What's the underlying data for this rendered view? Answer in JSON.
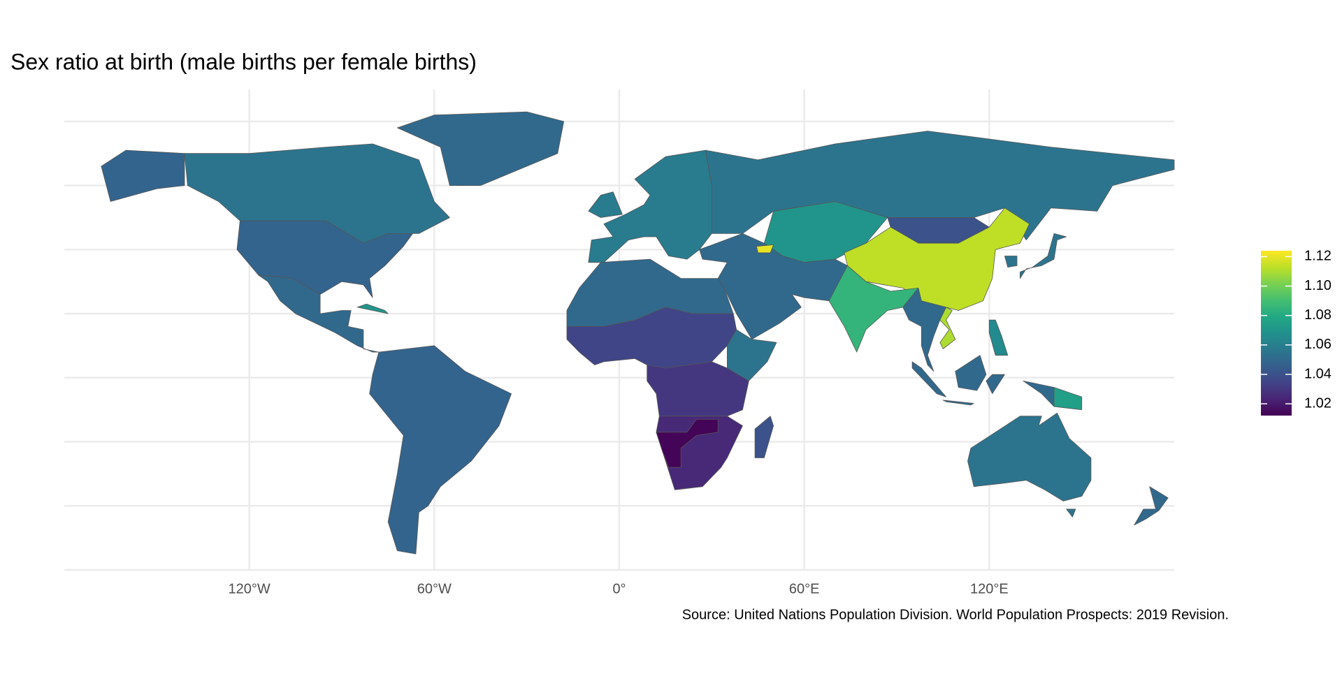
{
  "chart_data": {
    "type": "choropleth",
    "title": "Sex ratio at birth (male births per female births)",
    "caption": "Source: United Nations Population Division. World Population Prospects: 2019 Revision.",
    "xlim": [
      -180,
      180
    ],
    "ylim": [
      -60,
      90
    ],
    "xticks": [
      {
        "value": -120,
        "label": "120°W"
      },
      {
        "value": -60,
        "label": "60°W"
      },
      {
        "value": 0,
        "label": "0°"
      },
      {
        "value": 60,
        "label": "60°E"
      },
      {
        "value": 120,
        "label": "120°E"
      }
    ],
    "yticks": [
      -60,
      -40,
      -20,
      0,
      20,
      40,
      60,
      80
    ],
    "grid": true,
    "colormap": "viridis",
    "colorbar_lim": [
      1.012,
      1.124
    ],
    "colorbar_ticks": [
      1.02,
      1.04,
      1.06,
      1.08,
      {
        "value": 1.1,
        "label": "1.10"
      },
      1.12
    ],
    "legend_position": "right",
    "values": [
      1.055,
      1.048,
      1.05,
      1.05,
      1.07,
      1.048,
      1.058,
      1.055,
      1.07,
      1.04,
      1.113,
      1.085,
      1.05,
      1.12,
      1.05,
      1.035,
      1.055,
      1.03,
      1.025,
      1.013,
      1.04,
      1.05,
      1.11,
      1.055,
      1.05,
      1.065,
      1.075,
      1.055,
      1.05
    ]
  }
}
